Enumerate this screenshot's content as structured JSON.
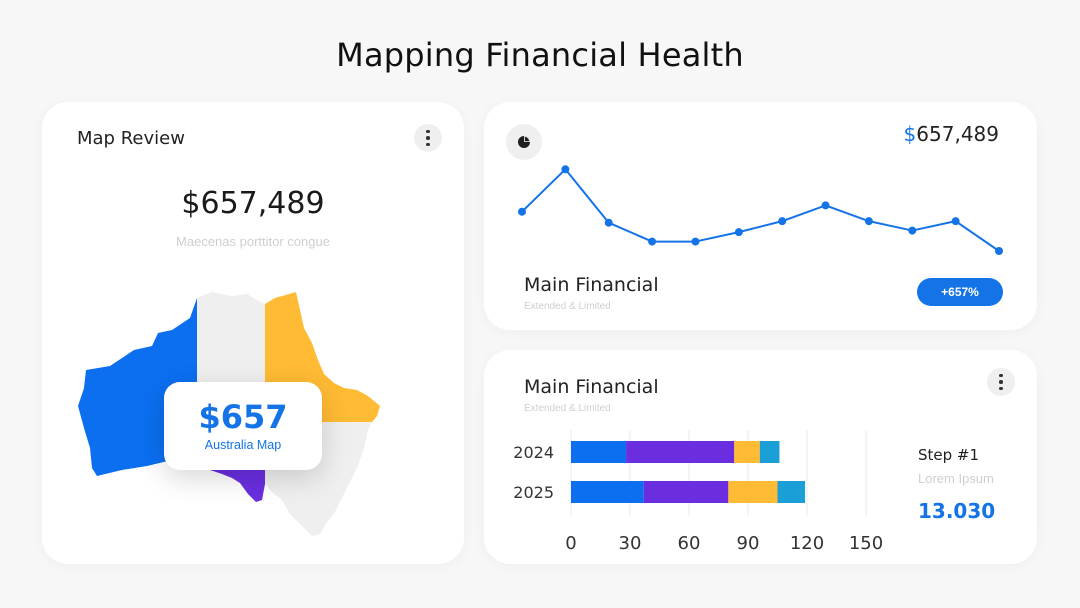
{
  "page": {
    "title": "Mapping Financial Health"
  },
  "map_card": {
    "title": "Map Review",
    "amount": "$657,489",
    "subtitle": "Maecenas porttitor congue",
    "overlay_value": "$657",
    "overlay_label": "Australia Map",
    "region_colors": {
      "west": "#0b6ff0",
      "central": "#efefef",
      "east": "#ffbb33",
      "south": "#6a2ee0",
      "southeast": "#efefef"
    }
  },
  "line_card": {
    "amount_currency": "$",
    "amount_value": "657,489",
    "title": "Main Financial",
    "subtitle": "Extended & Limited",
    "badge": "+657%",
    "icon": "pie-chart-icon"
  },
  "bar_card": {
    "title": "Main Financial",
    "subtitle": "Extended & Limited",
    "step_title": "Step #1",
    "step_sub": "Lorem Ipsum",
    "step_value": "13.030"
  },
  "chart_data": [
    {
      "type": "line",
      "x": [
        1,
        2,
        3,
        4,
        5,
        6,
        7,
        8,
        9,
        10,
        11,
        12
      ],
      "series": [
        {
          "values": [
            62,
            89,
            55,
            43,
            43,
            49,
            56,
            66,
            56,
            50,
            56,
            37
          ],
          "color": "#1473e6"
        }
      ],
      "ylim": [
        30,
        100
      ],
      "grid": false
    },
    {
      "type": "bar",
      "orientation": "horizontal",
      "stacked": true,
      "categories": [
        "2024",
        "2025"
      ],
      "series": [
        {
          "values": [
            28,
            37
          ],
          "color": "#0b6ff0"
        },
        {
          "values": [
            55,
            43
          ],
          "color": "#6a2ee0"
        },
        {
          "values": [
            13,
            25
          ],
          "color": "#ffbb33"
        },
        {
          "values": [
            10,
            14
          ],
          "color": "#1a9fd6"
        }
      ],
      "xticks": [
        "0",
        "30",
        "60",
        "90",
        "120",
        "150"
      ],
      "xlim": [
        0,
        150
      ],
      "grid": true
    }
  ]
}
